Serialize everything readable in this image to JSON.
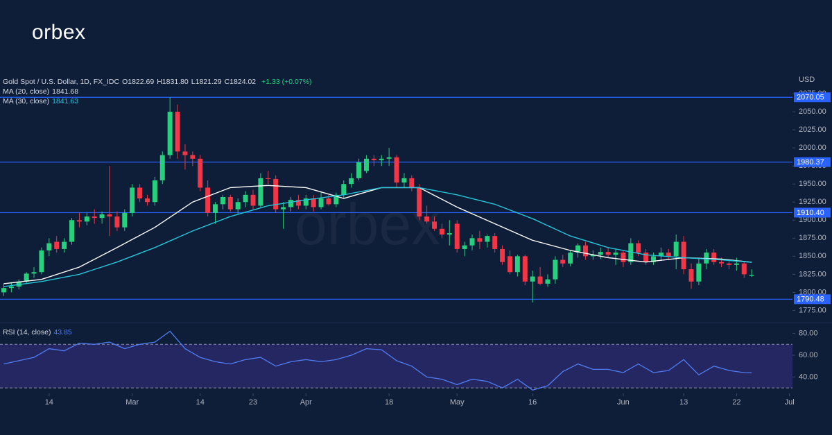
{
  "logo": "orbex",
  "chart_data": {
    "type": "candlestick",
    "symbol": "Gold Spot / U.S. Dollar, 1D, FX_IDC",
    "ohlc_legend": [
      {
        "label": "O",
        "value": "1822.69"
      },
      {
        "label": "H",
        "value": "1831.80"
      },
      {
        "label": "L",
        "value": "1821.29"
      },
      {
        "label": "C",
        "value": "1824.02"
      }
    ],
    "change": "+1.33 (+0.07%)",
    "currency": "USD",
    "watermark": "orbex",
    "up_color": "#26d07c",
    "down_color": "#f23645",
    "candles": [
      [
        1800,
        1812,
        1795,
        1806
      ],
      [
        1806,
        1814,
        1800,
        1808
      ],
      [
        1808,
        1818,
        1804,
        1815
      ],
      [
        1815,
        1828,
        1812,
        1826
      ],
      [
        1826,
        1835,
        1820,
        1828
      ],
      [
        1828,
        1862,
        1825,
        1858
      ],
      [
        1858,
        1875,
        1850,
        1868
      ],
      [
        1870,
        1878,
        1855,
        1860
      ],
      [
        1860,
        1875,
        1855,
        1870
      ],
      [
        1870,
        1903,
        1866,
        1900
      ],
      [
        1900,
        1910,
        1890,
        1898
      ],
      [
        1898,
        1910,
        1893,
        1905
      ],
      [
        1905,
        1915,
        1895,
        1903
      ],
      [
        1903,
        1912,
        1895,
        1908
      ],
      [
        1908,
        1975,
        1878,
        1905
      ],
      [
        1905,
        1912,
        1885,
        1890
      ],
      [
        1890,
        1915,
        1885,
        1910
      ],
      [
        1910,
        1950,
        1905,
        1945
      ],
      [
        1945,
        1950,
        1925,
        1930
      ],
      [
        1930,
        1935,
        1920,
        1925
      ],
      [
        1925,
        1960,
        1920,
        1955
      ],
      [
        1955,
        1995,
        1950,
        1990
      ],
      [
        1990,
        2070,
        1985,
        2050
      ],
      [
        2050,
        2060,
        1985,
        1995
      ],
      [
        1995,
        2005,
        1970,
        1990
      ],
      [
        1990,
        1995,
        1975,
        1985
      ],
      [
        1985,
        1990,
        1940,
        1945
      ],
      [
        1945,
        1955,
        1905,
        1910
      ],
      [
        1910,
        1925,
        1895,
        1922
      ],
      [
        1922,
        1935,
        1915,
        1932
      ],
      [
        1932,
        1935,
        1912,
        1915
      ],
      [
        1915,
        1930,
        1908,
        1925
      ],
      [
        1925,
        1940,
        1918,
        1935
      ],
      [
        1935,
        1942,
        1915,
        1920
      ],
      [
        1920,
        1965,
        1918,
        1958
      ],
      [
        1958,
        1968,
        1950,
        1957
      ],
      [
        1957,
        1962,
        1910,
        1915
      ],
      [
        1915,
        1925,
        1888,
        1918
      ],
      [
        1918,
        1932,
        1912,
        1928
      ],
      [
        1928,
        1935,
        1915,
        1920
      ],
      [
        1920,
        1935,
        1915,
        1930
      ],
      [
        1930,
        1935,
        1912,
        1918
      ],
      [
        1918,
        1940,
        1915,
        1930
      ],
      [
        1930,
        1935,
        1920,
        1922
      ],
      [
        1922,
        1938,
        1918,
        1935
      ],
      [
        1935,
        1955,
        1930,
        1950
      ],
      [
        1950,
        1965,
        1945,
        1958
      ],
      [
        1958,
        1985,
        1955,
        1980
      ],
      [
        1968,
        1990,
        1965,
        1985
      ],
      [
        1985,
        1990,
        1975,
        1983
      ],
      [
        1983,
        1990,
        1975,
        1985
      ],
      [
        1985,
        2000,
        1975,
        1987
      ],
      [
        1987,
        1990,
        1945,
        1952
      ],
      [
        1952,
        1965,
        1945,
        1958
      ],
      [
        1958,
        1962,
        1940,
        1945
      ],
      [
        1945,
        1950,
        1900,
        1905
      ],
      [
        1905,
        1920,
        1895,
        1898
      ],
      [
        1898,
        1905,
        1885,
        1888
      ],
      [
        1888,
        1895,
        1875,
        1880
      ],
      [
        1880,
        1900,
        1865,
        1882
      ],
      [
        1895,
        1900,
        1855,
        1860
      ],
      [
        1860,
        1870,
        1850,
        1865
      ],
      [
        1865,
        1880,
        1858,
        1875
      ],
      [
        1875,
        1885,
        1860,
        1870
      ],
      [
        1870,
        1880,
        1862,
        1878
      ],
      [
        1878,
        1882,
        1855,
        1860
      ],
      [
        1860,
        1865,
        1838,
        1842
      ],
      [
        1850,
        1858,
        1825,
        1828
      ],
      [
        1828,
        1852,
        1822,
        1850
      ],
      [
        1850,
        1852,
        1810,
        1815
      ],
      [
        1815,
        1830,
        1786,
        1822
      ],
      [
        1822,
        1835,
        1810,
        1812
      ],
      [
        1812,
        1825,
        1808,
        1818
      ],
      [
        1818,
        1850,
        1812,
        1845
      ],
      [
        1845,
        1852,
        1835,
        1840
      ],
      [
        1840,
        1858,
        1836,
        1855
      ],
      [
        1855,
        1868,
        1848,
        1865
      ],
      [
        1865,
        1870,
        1845,
        1850
      ],
      [
        1850,
        1858,
        1845,
        1852
      ],
      [
        1852,
        1862,
        1846,
        1856
      ],
      [
        1856,
        1862,
        1848,
        1852
      ],
      [
        1852,
        1860,
        1838,
        1855
      ],
      [
        1855,
        1858,
        1835,
        1842
      ],
      [
        1842,
        1875,
        1838,
        1868
      ],
      [
        1868,
        1872,
        1850,
        1855
      ],
      [
        1855,
        1860,
        1838,
        1842
      ],
      [
        1842,
        1855,
        1838,
        1850
      ],
      [
        1850,
        1862,
        1845,
        1855
      ],
      [
        1855,
        1860,
        1845,
        1850
      ],
      [
        1850,
        1880,
        1832,
        1870
      ],
      [
        1870,
        1878,
        1825,
        1832
      ],
      [
        1832,
        1840,
        1805,
        1815
      ],
      [
        1815,
        1848,
        1810,
        1840
      ],
      [
        1840,
        1860,
        1832,
        1855
      ],
      [
        1855,
        1860,
        1838,
        1842
      ],
      [
        1842,
        1848,
        1835,
        1840
      ],
      [
        1840,
        1845,
        1832,
        1838
      ],
      [
        1838,
        1848,
        1830,
        1840
      ],
      [
        1840,
        1842,
        1820,
        1825
      ],
      [
        1822.69,
        1831.8,
        1821.29,
        1824.02
      ]
    ],
    "xlim": [
      -0.5,
      104.4
    ],
    "xticks": [
      {
        "value": 6,
        "label": "14"
      },
      {
        "value": 17,
        "label": "Mar"
      },
      {
        "value": 26,
        "label": "14"
      },
      {
        "value": 33,
        "label": "23"
      },
      {
        "value": 40,
        "label": "Apr"
      },
      {
        "value": 51,
        "label": "18"
      },
      {
        "value": 60,
        "label": "May"
      },
      {
        "value": 70,
        "label": "16"
      },
      {
        "value": 82,
        "label": "Jun"
      },
      {
        "value": 90,
        "label": "13"
      },
      {
        "value": 97,
        "label": "22"
      },
      {
        "value": 104,
        "label": "Jul"
      }
    ],
    "ylim": [
      1761,
      2101
    ],
    "yticks": [
      {
        "value": 1775,
        "label": "1775.00"
      },
      {
        "value": 1800,
        "label": "1800.00"
      },
      {
        "value": 1825,
        "label": "1825.00"
      },
      {
        "value": 1850,
        "label": "1850.00"
      },
      {
        "value": 1875,
        "label": "1875.00"
      },
      {
        "value": 1900,
        "label": "1900.00"
      },
      {
        "value": 1925,
        "label": "1925.00"
      },
      {
        "value": 1950,
        "label": "1950.00"
      },
      {
        "value": 1975,
        "label": "1975.00"
      },
      {
        "value": 2000,
        "label": "2000.00"
      },
      {
        "value": 2025,
        "label": "2025.00"
      },
      {
        "value": 2050,
        "label": "2050.00"
      },
      {
        "value": 2075,
        "label": "2075.00"
      }
    ],
    "levels": [
      2070.05,
      1980.37,
      {
        "value": 1910.4,
        "label": "1910.40"
      },
      1790.48
    ],
    "level_color": "#2962ff",
    "series": [
      {
        "name": "MA (20, close)",
        "last": "1841.68",
        "color": "#ffffff",
        "x": [
          0,
          5,
          10,
          15,
          20,
          25,
          30,
          35,
          40,
          45,
          50,
          55,
          60,
          65,
          70,
          75,
          80,
          85,
          90,
          95,
          99
        ],
        "values": [
          1812,
          1818,
          1835,
          1862,
          1890,
          1925,
          1945,
          1948,
          1945,
          1930,
          1945,
          1945,
          1918,
          1895,
          1872,
          1858,
          1848,
          1842,
          1848,
          1846,
          1841.68
        ]
      },
      {
        "name": "MA (30, close)",
        "last": "1841.63",
        "color": "#26c6da",
        "x": [
          0,
          5,
          10,
          15,
          20,
          25,
          30,
          35,
          40,
          45,
          50,
          55,
          60,
          65,
          70,
          75,
          80,
          85,
          90,
          95,
          99
        ],
        "values": [
          1808,
          1815,
          1825,
          1842,
          1862,
          1885,
          1905,
          1920,
          1928,
          1935,
          1945,
          1945,
          1935,
          1922,
          1902,
          1878,
          1862,
          1852,
          1848,
          1845,
          1841.63
        ]
      }
    ],
    "rsi": {
      "name": "RSI (14, close)",
      "last": "43.85",
      "color": "#4f7df0",
      "x": [
        0,
        2,
        4,
        6,
        8,
        10,
        12,
        14,
        16,
        18,
        20,
        22,
        24,
        26,
        28,
        30,
        32,
        34,
        36,
        38,
        40,
        42,
        44,
        46,
        48,
        50,
        52,
        54,
        56,
        58,
        60,
        62,
        64,
        66,
        68,
        70,
        72,
        74,
        76,
        78,
        80,
        82,
        84,
        86,
        88,
        90,
        92,
        94,
        96,
        98,
        99
      ],
      "values": [
        52,
        55,
        58,
        66,
        64,
        71,
        70,
        72,
        66,
        70,
        72,
        82,
        66,
        58,
        54,
        52,
        56,
        58,
        50,
        54,
        56,
        54,
        56,
        60,
        66,
        65,
        55,
        50,
        40,
        38,
        33,
        38,
        36,
        30,
        38,
        28,
        32,
        45,
        52,
        47,
        47,
        44,
        52,
        44,
        46,
        56,
        42,
        50,
        46,
        44,
        43.85
      ],
      "ylim": [
        25,
        88
      ],
      "yticks": [
        {
          "value": 40,
          "label": "40.00"
        },
        {
          "value": 60,
          "label": "60.00"
        },
        {
          "value": 80,
          "label": "80.00"
        }
      ],
      "band": [
        30,
        70
      ],
      "band_color": "#29296a"
    }
  }
}
